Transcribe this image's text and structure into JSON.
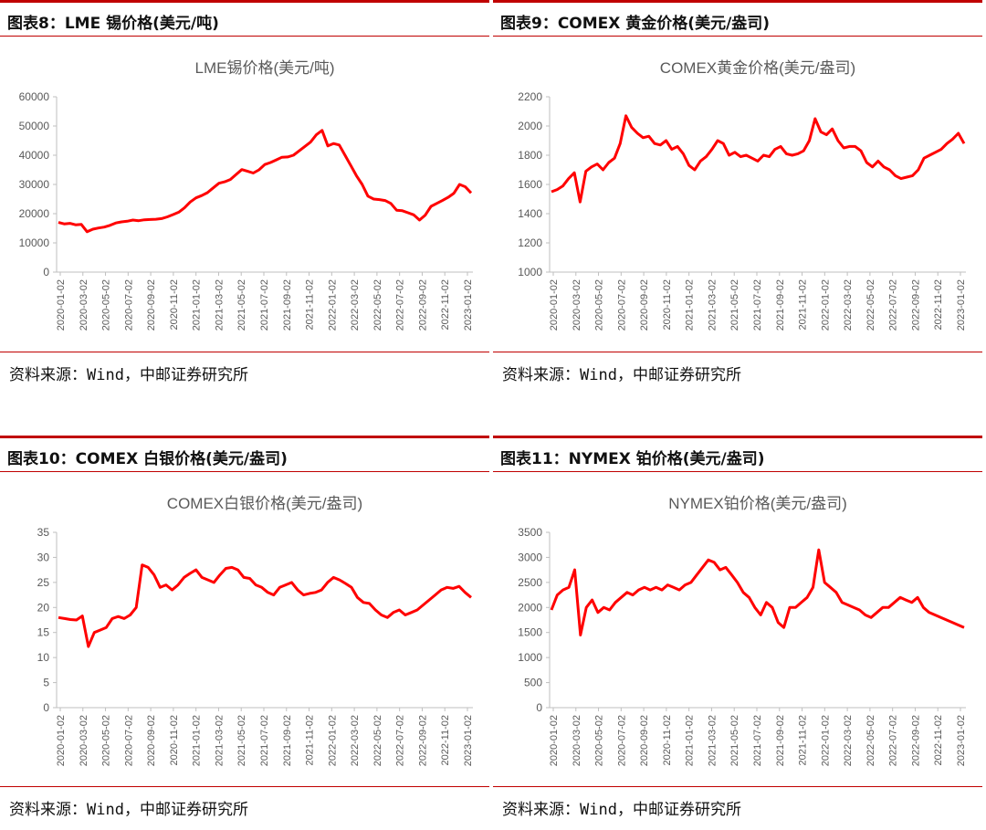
{
  "panels": [
    {
      "header": "图表8：LME 锡价格(美元/吨)",
      "source": "资料来源：Wind，中邮证券研究所",
      "chart_data": {
        "type": "line",
        "title": "LME锡价格(美元/吨)",
        "color": "#ff0000",
        "ylim": [
          0,
          60000
        ],
        "yticks": [
          0,
          10000,
          20000,
          30000,
          40000,
          50000,
          60000
        ],
        "xlabels": [
          "2020-01-02",
          "2020-03-02",
          "2020-05-02",
          "2020-07-02",
          "2020-09-02",
          "2020-11-02",
          "2021-01-02",
          "2021-03-02",
          "2021-05-02",
          "2021-07-02",
          "2021-09-02",
          "2021-11-02",
          "2022-01-02",
          "2022-03-02",
          "2022-05-02",
          "2022-07-02",
          "2022-09-02",
          "2022-11-02",
          "2023-01-02"
        ],
        "series": [
          {
            "values": [
              17000,
              16500,
              16700,
              16200,
              16300,
              13800,
              14700,
              15100,
              15400,
              16000,
              16800,
              17200,
              17400,
              17800,
              17600,
              17900,
              18000,
              18100,
              18300,
              18900,
              19700,
              20500,
              22000,
              24000,
              25400,
              26200,
              27200,
              28800,
              30400,
              30900,
              31700,
              33400,
              35100,
              34500,
              33900,
              35000,
              36800,
              37500,
              38400,
              39300,
              39400,
              40000,
              41500,
              43000,
              44500,
              47000,
              48500,
              43200,
              44000,
              43500,
              40000,
              36500,
              33000,
              30000,
              26000,
              25000,
              24800,
              24500,
              23500,
              21200,
              21000,
              20300,
              19600,
              17800,
              19500,
              22500,
              23500,
              24500,
              25600,
              27000,
              30000,
              29200,
              27100
            ]
          }
        ]
      }
    },
    {
      "header": "图表9：COMEX 黄金价格(美元/盎司)",
      "source": "资料来源：Wind，中邮证券研究所",
      "chart_data": {
        "type": "line",
        "title": "COMEX黄金价格(美元/盎司)",
        "color": "#ff0000",
        "ylim": [
          1000,
          2200
        ],
        "yticks": [
          1000,
          1200,
          1400,
          1600,
          1800,
          2000,
          2200
        ],
        "xlabels": [
          "2020-01-02",
          "2020-03-02",
          "2020-05-02",
          "2020-07-02",
          "2020-09-02",
          "2020-11-02",
          "2021-01-02",
          "2021-03-02",
          "2021-05-02",
          "2021-07-02",
          "2021-09-02",
          "2021-11-02",
          "2022-01-02",
          "2022-03-02",
          "2022-05-02",
          "2022-07-02",
          "2022-09-02",
          "2022-11-02",
          "2023-01-02"
        ],
        "series": [
          {
            "values": [
              1550,
              1565,
              1590,
              1640,
              1680,
              1480,
              1690,
              1720,
              1740,
              1700,
              1750,
              1780,
              1880,
              2070,
              1990,
              1950,
              1920,
              1930,
              1880,
              1870,
              1900,
              1840,
              1860,
              1810,
              1730,
              1700,
              1760,
              1790,
              1840,
              1900,
              1880,
              1800,
              1820,
              1790,
              1800,
              1780,
              1760,
              1800,
              1790,
              1840,
              1860,
              1810,
              1800,
              1810,
              1830,
              1900,
              2050,
              1960,
              1940,
              1980,
              1900,
              1850,
              1860,
              1860,
              1830,
              1750,
              1720,
              1760,
              1720,
              1700,
              1660,
              1640,
              1650,
              1660,
              1700,
              1780,
              1800,
              1820,
              1840,
              1880,
              1910,
              1950,
              1880
            ]
          }
        ]
      }
    },
    {
      "header": "图表10：COMEX 白银价格(美元/盎司)",
      "source": "资料来源：Wind，中邮证券研究所",
      "chart_data": {
        "type": "line",
        "title": "COMEX白银价格(美元/盎司)",
        "color": "#ff0000",
        "ylim": [
          0,
          35
        ],
        "yticks": [
          0,
          5,
          10,
          15,
          20,
          25,
          30,
          35
        ],
        "xlabels": [
          "2020-01-02",
          "2020-03-02",
          "2020-05-02",
          "2020-07-02",
          "2020-09-02",
          "2020-11-02",
          "2021-01-02",
          "2021-03-02",
          "2021-05-02",
          "2021-07-02",
          "2021-09-02",
          "2021-11-02",
          "2022-01-02",
          "2022-03-02",
          "2022-05-02",
          "2022-07-02",
          "2022-09-02",
          "2022-11-02",
          "2023-01-02"
        ],
        "series": [
          {
            "values": [
              18.0,
              17.8,
              17.6,
              17.5,
              18.3,
              12.2,
              15.0,
              15.5,
              16.0,
              17.8,
              18.2,
              17.8,
              18.5,
              20.0,
              28.5,
              28.0,
              26.5,
              24.0,
              24.5,
              23.5,
              24.5,
              26.0,
              26.8,
              27.5,
              26.0,
              25.5,
              25.0,
              26.5,
              27.8,
              28.0,
              27.5,
              26.0,
              25.8,
              24.5,
              24.0,
              23.0,
              22.5,
              24.0,
              24.5,
              25.0,
              23.5,
              22.5,
              22.8,
              23.0,
              23.5,
              25.0,
              26.0,
              25.5,
              24.8,
              24.0,
              22.0,
              21.0,
              20.8,
              19.5,
              18.5,
              18.0,
              19.0,
              19.5,
              18.5,
              19.0,
              19.5,
              20.5,
              21.5,
              22.5,
              23.5,
              24.0,
              23.8,
              24.2,
              23.0,
              22.0
            ]
          }
        ]
      }
    },
    {
      "header": "图表11：NYMEX 铂价格(美元/盎司)",
      "source": "资料来源：Wind，中邮证券研究所",
      "chart_data": {
        "type": "line",
        "title": "NYMEX铂价格(美元/盎司)",
        "color": "#ff0000",
        "ylim": [
          0,
          3500
        ],
        "yticks": [
          0,
          500,
          1000,
          1500,
          2000,
          2500,
          3000,
          3500
        ],
        "xlabels": [
          "2020-01-02",
          "2020-03-02",
          "2020-05-02",
          "2020-07-02",
          "2020-09-02",
          "2020-11-02",
          "2021-01-02",
          "2021-03-02",
          "2021-05-02",
          "2021-07-02",
          "2021-09-02",
          "2021-11-02",
          "2022-01-02",
          "2022-03-02",
          "2022-05-02",
          "2022-07-02",
          "2022-09-02",
          "2022-11-02",
          "2023-01-02"
        ],
        "series": [
          {
            "values": [
              1950,
              2250,
              2350,
              2400,
              2750,
              1450,
              2000,
              2150,
              1900,
              2000,
              1950,
              2100,
              2200,
              2300,
              2250,
              2350,
              2400,
              2350,
              2400,
              2350,
              2450,
              2400,
              2350,
              2450,
              2500,
              2650,
              2800,
              2950,
              2900,
              2750,
              2800,
              2650,
              2500,
              2300,
              2200,
              2000,
              1850,
              2100,
              2000,
              1700,
              1600,
              2000,
              2000,
              2100,
              2200,
              2400,
              3150,
              2500,
              2400,
              2300,
              2100,
              2050,
              2000,
              1950,
              1850,
              1800,
              1900,
              2000,
              2000,
              2100,
              2200,
              2150,
              2100,
              2200,
              2000,
              1900,
              1850,
              1800,
              1750,
              1700,
              1650,
              1600
            ]
          }
        ]
      }
    }
  ]
}
